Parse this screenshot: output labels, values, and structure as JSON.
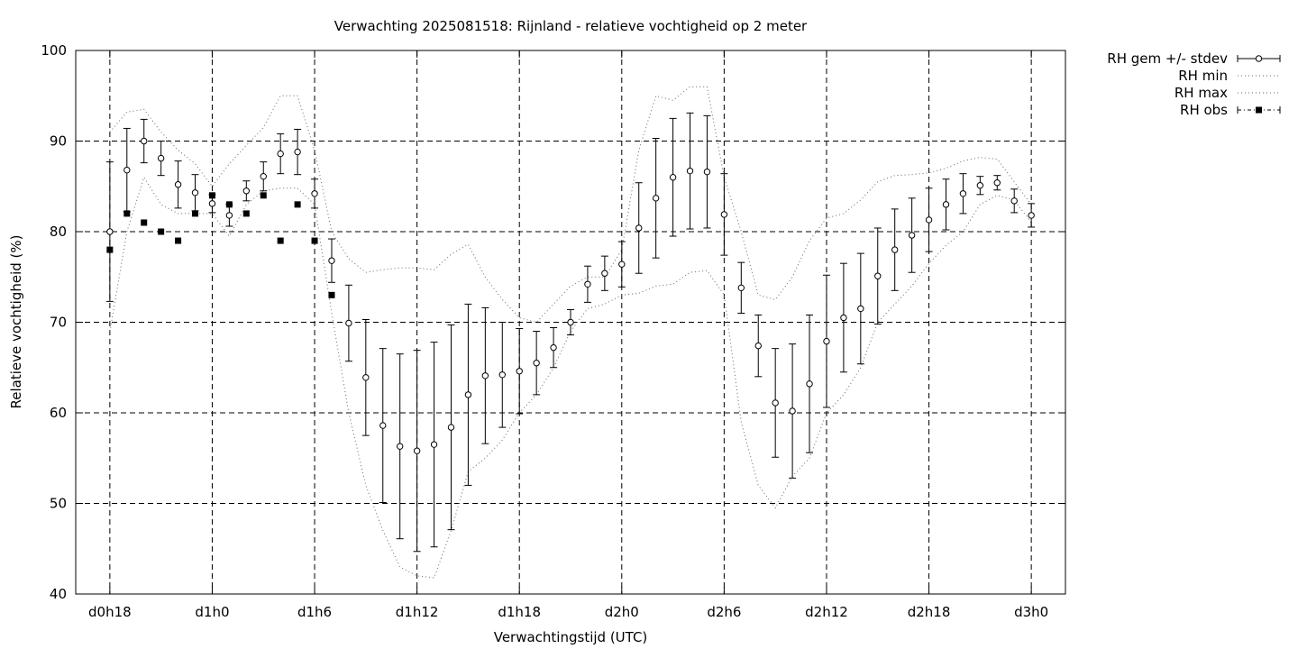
{
  "chart_data": {
    "type": "line",
    "title": "Verwachting 2025081518: Rijnland - relatieve vochtigheid op 2 meter",
    "xlabel": "Verwachtingstijd (UTC)",
    "ylabel": "Relatieve vochtigheid (%)",
    "ylim": [
      40,
      100
    ],
    "yticks": [
      "40",
      "50",
      "60",
      "70",
      "80",
      "90",
      "100"
    ],
    "xlim_hours": [
      -2,
      56
    ],
    "xticks": [
      {
        "label": "d0h18",
        "hour": 0
      },
      {
        "label": "d1h0",
        "hour": 6
      },
      {
        "label": "d1h6",
        "hour": 12
      },
      {
        "label": "d1h12",
        "hour": 18
      },
      {
        "label": "d1h18",
        "hour": 24
      },
      {
        "label": "d2h0",
        "hour": 30
      },
      {
        "label": "d2h6",
        "hour": 36
      },
      {
        "label": "d2h12",
        "hour": 42
      },
      {
        "label": "d2h18",
        "hour": 48
      },
      {
        "label": "d3h0",
        "hour": 54
      }
    ],
    "grid": true,
    "legend_position": "outside-top-right",
    "legend": [
      {
        "label": "RH gem +/- stdev",
        "style": "errorbars"
      },
      {
        "label": "RH min",
        "style": "dotted"
      },
      {
        "label": "RH max",
        "style": "dotted"
      },
      {
        "label": "RH obs",
        "style": "squares"
      }
    ],
    "series": [
      {
        "name": "RH gem +/- stdev",
        "x": [
          0,
          1,
          2,
          3,
          4,
          5,
          6,
          7,
          8,
          9,
          10,
          11,
          12,
          13,
          14,
          15,
          16,
          17,
          18,
          19,
          20,
          21,
          22,
          23,
          24,
          25,
          26,
          27,
          28,
          29,
          30,
          31,
          32,
          33,
          34,
          35,
          36,
          37,
          38,
          39,
          40,
          41,
          42,
          43,
          44,
          45,
          46,
          47,
          48,
          49,
          50,
          51,
          52,
          53,
          54
        ],
        "mean": [
          80,
          86.8,
          90,
          88.1,
          85.2,
          84.3,
          83.1,
          81.8,
          84.5,
          86.1,
          88.6,
          88.8,
          84.2,
          76.8,
          69.9,
          63.9,
          58.6,
          56.3,
          55.8,
          56.5,
          58.4,
          62,
          64.1,
          64.2,
          64.6,
          65.5,
          67.2,
          70,
          74.2,
          75.4,
          76.4,
          80.4,
          83.7,
          86,
          86.7,
          86.6,
          81.9,
          73.8,
          67.4,
          61.1,
          60.2,
          63.2,
          67.9,
          70.5,
          71.5,
          75.1,
          78,
          79.6,
          81.3,
          83,
          84.2,
          85.1,
          85.4,
          83.4,
          81.8
        ],
        "stdev": [
          7.7,
          4.6,
          2.4,
          1.9,
          2.6,
          2,
          1,
          1.2,
          1.1,
          1.6,
          2.2,
          2.5,
          1.6,
          2.4,
          4.2,
          6.4,
          8.5,
          10.2,
          11.1,
          11.3,
          11.3,
          10,
          7.5,
          5.8,
          4.7,
          3.5,
          2.2,
          1.4,
          2,
          1.9,
          2.5,
          5,
          6.6,
          6.5,
          6.4,
          6.2,
          4.5,
          2.8,
          3.4,
          6,
          7.4,
          7.6,
          7.3,
          6,
          6.1,
          5.3,
          4.5,
          4.1,
          3.5,
          2.8,
          2.2,
          1,
          0.8,
          1.3,
          1.3
        ]
      },
      {
        "name": "RH min",
        "x": [
          0,
          1,
          2,
          3,
          4,
          5,
          6,
          7,
          8,
          9,
          10,
          11,
          12,
          13,
          14,
          15,
          16,
          17,
          18,
          19,
          20,
          21,
          22,
          23,
          24,
          25,
          26,
          27,
          28,
          29,
          30,
          31,
          32,
          33,
          34,
          35,
          36,
          37,
          38,
          39,
          40,
          41,
          42,
          43,
          44,
          45,
          46,
          47,
          48,
          49,
          50,
          51,
          52,
          53,
          54
        ],
        "values": [
          69,
          80,
          86,
          83,
          82,
          82,
          82,
          79.5,
          83,
          84.5,
          84.8,
          84.8,
          83,
          71,
          60,
          52,
          47,
          43,
          42,
          41.8,
          47,
          53.5,
          55,
          57,
          60,
          62,
          65,
          69,
          71.5,
          72,
          73,
          73.2,
          74,
          74.2,
          75.5,
          75.7,
          73,
          59,
          52,
          49.5,
          53,
          55,
          60,
          62,
          65,
          70,
          72,
          74,
          76.5,
          78.5,
          80,
          83,
          84,
          83.5,
          81
        ]
      },
      {
        "name": "RH max",
        "x": [
          0,
          1,
          2,
          3,
          4,
          5,
          6,
          7,
          8,
          9,
          10,
          11,
          12,
          13,
          14,
          15,
          16,
          17,
          18,
          19,
          20,
          21,
          22,
          23,
          24,
          25,
          26,
          27,
          28,
          29,
          30,
          31,
          32,
          33,
          34,
          35,
          36,
          37,
          38,
          39,
          40,
          41,
          42,
          43,
          44,
          45,
          46,
          47,
          48,
          49,
          50,
          51,
          52,
          53,
          54
        ],
        "values": [
          91,
          93.2,
          93.5,
          91,
          89,
          87.5,
          85,
          87.5,
          89.5,
          91.5,
          95,
          95,
          89,
          80,
          77,
          75.5,
          75.8,
          76,
          76,
          75.8,
          77.5,
          78.6,
          75,
          72.5,
          70.5,
          70,
          72,
          74,
          75,
          75,
          78,
          89,
          95,
          94.5,
          96,
          96,
          86,
          80,
          73,
          72.5,
          75,
          79,
          81.5,
          82,
          83.5,
          85.5,
          86.2,
          86.3,
          86.5,
          87,
          87.8,
          88.2,
          88,
          85.5,
          83
        ]
      },
      {
        "name": "RH obs",
        "x": [
          0,
          1,
          2,
          3,
          4,
          5,
          6,
          7,
          8,
          9,
          10,
          11,
          12,
          13
        ],
        "values": [
          78,
          82,
          81,
          80,
          79,
          82,
          84,
          83,
          82,
          84,
          79,
          83,
          79,
          73
        ]
      }
    ]
  }
}
